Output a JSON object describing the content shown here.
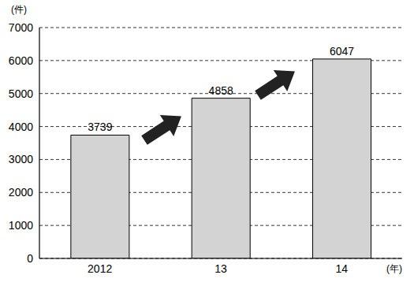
{
  "chart_data": {
    "type": "bar",
    "categories": [
      "2012",
      "13",
      "14"
    ],
    "values": [
      3739,
      4858,
      6047
    ],
    "color": "#d3d3d3",
    "ylim": [
      0,
      7000
    ],
    "yticks": [
      0,
      1000,
      2000,
      3000,
      4000,
      5000,
      6000,
      7000
    ],
    "grid": true,
    "data_labels": true,
    "y_label": "(件)",
    "x_label": "(年)"
  }
}
